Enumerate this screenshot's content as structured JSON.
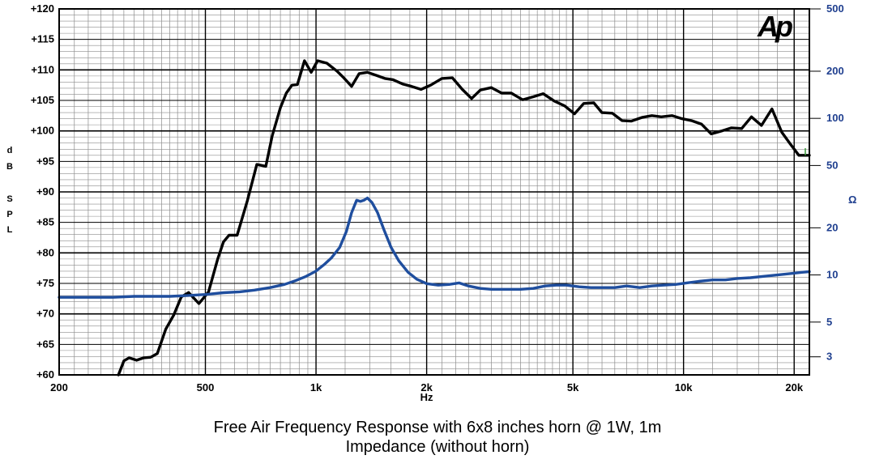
{
  "chart_data": {
    "type": "line",
    "title": "Free Air Frequency Response with 6x8 inches horn @ 1W, 1m",
    "subtitle": "Impedance (without horn)",
    "xlabel": "Hz",
    "x_scale": "log",
    "xlim": [
      200,
      22000
    ],
    "x_tick_labels": [
      {
        "value": 200,
        "label": "200"
      },
      {
        "value": 500,
        "label": "500"
      },
      {
        "value": 1000,
        "label": "1k"
      },
      {
        "value": 2000,
        "label": "2k"
      },
      {
        "value": 5000,
        "label": "5k"
      },
      {
        "value": 10000,
        "label": "10k"
      },
      {
        "value": 20000,
        "label": "20k"
      }
    ],
    "ylabel_left": [
      "d",
      "B",
      "",
      "S",
      "P",
      "L"
    ],
    "ylim_left": [
      60,
      120
    ],
    "y_tick_labels_left": [
      {
        "value": 120,
        "label": "+120"
      },
      {
        "value": 115,
        "label": "+115"
      },
      {
        "value": 110,
        "label": "+110"
      },
      {
        "value": 105,
        "label": "+105"
      },
      {
        "value": 100,
        "label": "+100"
      },
      {
        "value": 95,
        "label": "+95"
      },
      {
        "value": 90,
        "label": "+90"
      },
      {
        "value": 85,
        "label": "+85"
      },
      {
        "value": 80,
        "label": "+80"
      },
      {
        "value": 75,
        "label": "+75"
      },
      {
        "value": 70,
        "label": "+70"
      },
      {
        "value": 65,
        "label": "+65"
      },
      {
        "value": 60,
        "label": "+60"
      }
    ],
    "ylabel_right": "Ω",
    "y_scale_right": "log",
    "ylim_right": [
      2.3,
      500
    ],
    "y_tick_labels_right": [
      {
        "value": 500,
        "label": "500"
      },
      {
        "value": 200,
        "label": "200"
      },
      {
        "value": 100,
        "label": "100"
      },
      {
        "value": 50,
        "label": "50"
      },
      {
        "value": 20,
        "label": "20"
      },
      {
        "value": 10,
        "label": "10"
      },
      {
        "value": 5,
        "label": "5"
      },
      {
        "value": 3,
        "label": "3"
      }
    ],
    "grid": true,
    "logo": "Ap",
    "colors": {
      "spl": "#000000",
      "impedance": "#1f4e9e",
      "right_axis_text": "#1f3f8f",
      "grid_major": "#000000",
      "grid_minor": "#8c8c8c",
      "marker": "#3a9a3a"
    },
    "series": [
      {
        "id": "spl",
        "axis": "left",
        "x": [
          290,
          300,
          310,
          325,
          340,
          355,
          370,
          390,
          410,
          430,
          450,
          480,
          510,
          540,
          560,
          580,
          610,
          650,
          690,
          730,
          760,
          800,
          830,
          860,
          890,
          930,
          970,
          1010,
          1070,
          1140,
          1190,
          1250,
          1310,
          1380,
          1460,
          1540,
          1620,
          1720,
          1820,
          1930,
          2050,
          2200,
          2350,
          2500,
          2650,
          2800,
          3000,
          3200,
          3400,
          3650,
          3900,
          4150,
          4450,
          4750,
          5050,
          5350,
          5700,
          6000,
          6400,
          6800,
          7200,
          7700,
          8200,
          8700,
          9300,
          9900,
          10500,
          11200,
          11900,
          12700,
          13500,
          14400,
          15300,
          16300,
          17400,
          18500,
          19500,
          20600,
          21400,
          22000
        ],
        "y": [
          59.5,
          62.3,
          62.8,
          62.4,
          62.8,
          62.9,
          63.5,
          67.5,
          69.8,
          72.8,
          73.5,
          71.7,
          73.6,
          79.0,
          81.8,
          82.9,
          82.9,
          88.5,
          94.5,
          94.2,
          99.2,
          103.8,
          106.2,
          107.5,
          107.6,
          111.5,
          109.6,
          111.5,
          111.1,
          109.8,
          108.7,
          107.3,
          109.4,
          109.6,
          109.1,
          108.6,
          108.4,
          107.7,
          107.3,
          106.8,
          107.5,
          108.6,
          108.7,
          106.8,
          105.3,
          106.7,
          107.1,
          106.2,
          106.2,
          105.1,
          105.6,
          106.1,
          104.9,
          104.1,
          102.8,
          104.5,
          104.6,
          103.0,
          102.9,
          101.7,
          101.6,
          102.2,
          102.5,
          102.3,
          102.5,
          102.0,
          101.7,
          101.1,
          99.5,
          100.0,
          100.5,
          100.4,
          102.3,
          100.9,
          103.6,
          99.8,
          97.9,
          96,
          96,
          96
        ]
      },
      {
        "id": "impedance",
        "axis": "right",
        "x": [
          200,
          240,
          280,
          320,
          360,
          400,
          450,
          500,
          560,
          620,
          680,
          750,
          820,
          880,
          940,
          1000,
          1050,
          1100,
          1160,
          1210,
          1250,
          1290,
          1320,
          1350,
          1380,
          1420,
          1470,
          1530,
          1600,
          1680,
          1780,
          1880,
          2000,
          2150,
          2300,
          2450,
          2600,
          2800,
          3000,
          3300,
          3600,
          3900,
          4200,
          4500,
          4800,
          5200,
          5600,
          6000,
          6500,
          7000,
          7600,
          8200,
          8800,
          9500,
          10200,
          11000,
          12000,
          13000,
          14000,
          15200,
          16500,
          18000,
          19500,
          21000,
          22000
        ],
        "y": [
          7.2,
          7.2,
          7.2,
          7.3,
          7.3,
          7.3,
          7.4,
          7.5,
          7.7,
          7.8,
          8.0,
          8.3,
          8.7,
          9.2,
          9.8,
          10.6,
          11.6,
          12.8,
          15.0,
          19.0,
          25.0,
          30.0,
          29.5,
          30.0,
          31.0,
          29.0,
          25.0,
          19.5,
          15.0,
          12.3,
          10.4,
          9.4,
          8.8,
          8.6,
          8.7,
          8.9,
          8.5,
          8.2,
          8.1,
          8.1,
          8.1,
          8.2,
          8.5,
          8.6,
          8.6,
          8.4,
          8.3,
          8.3,
          8.3,
          8.5,
          8.3,
          8.5,
          8.6,
          8.7,
          8.9,
          9.1,
          9.3,
          9.3,
          9.5,
          9.6,
          9.8,
          10.0,
          10.2,
          10.4,
          10.5
        ]
      }
    ]
  }
}
